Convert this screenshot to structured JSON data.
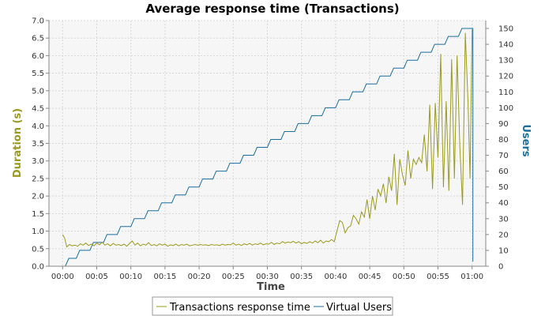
{
  "chart_data": {
    "type": "line",
    "title": "Average response time (Transactions)",
    "xlabel": "Time",
    "ylabel_left": "Duration (s)",
    "ylabel_right": "Users",
    "x_ticks": [
      "00:00",
      "00:05",
      "00:10",
      "00:15",
      "00:20",
      "00:25",
      "00:30",
      "00:35",
      "00:40",
      "00:45",
      "00:50",
      "00:55",
      "01:00"
    ],
    "xlim_minutes": [
      -2,
      62
    ],
    "ylim_left": [
      0,
      7.0
    ],
    "y_ticks_left": [
      "0.0",
      "0.5",
      "1.0",
      "1.5",
      "2.0",
      "2.5",
      "3.0",
      "3.5",
      "4.0",
      "4.5",
      "5.0",
      "5.5",
      "6.0",
      "6.5",
      "7.0"
    ],
    "ylim_right": [
      0,
      155
    ],
    "y_ticks_right": [
      "0",
      "10",
      "20",
      "30",
      "40",
      "50",
      "60",
      "70",
      "80",
      "90",
      "100",
      "110",
      "120",
      "130",
      "140",
      "150"
    ],
    "grid": true,
    "legend_position": "bottom",
    "series": [
      {
        "name": "Transactions response time",
        "color": "#9a9a1e",
        "axis": "left",
        "points": [
          [
            0,
            0.9
          ],
          [
            0.3,
            0.8
          ],
          [
            0.6,
            0.55
          ],
          [
            1,
            0.62
          ],
          [
            1.4,
            0.58
          ],
          [
            1.8,
            0.6
          ],
          [
            2.2,
            0.57
          ],
          [
            2.6,
            0.64
          ],
          [
            3,
            0.6
          ],
          [
            3.4,
            0.66
          ],
          [
            3.8,
            0.59
          ],
          [
            4.2,
            0.63
          ],
          [
            4.6,
            0.58
          ],
          [
            5,
            0.66
          ],
          [
            5.4,
            0.61
          ],
          [
            5.8,
            0.68
          ],
          [
            6.2,
            0.6
          ],
          [
            6.6,
            0.64
          ],
          [
            7,
            0.58
          ],
          [
            7.4,
            0.65
          ],
          [
            7.8,
            0.6
          ],
          [
            8.2,
            0.62
          ],
          [
            8.6,
            0.59
          ],
          [
            9,
            0.63
          ],
          [
            9.4,
            0.57
          ],
          [
            9.8,
            0.65
          ],
          [
            10.2,
            0.72
          ],
          [
            10.6,
            0.6
          ],
          [
            11,
            0.66
          ],
          [
            11.4,
            0.58
          ],
          [
            11.8,
            0.63
          ],
          [
            12.2,
            0.6
          ],
          [
            12.6,
            0.67
          ],
          [
            13,
            0.59
          ],
          [
            13.4,
            0.62
          ],
          [
            13.8,
            0.58
          ],
          [
            14.2,
            0.64
          ],
          [
            14.6,
            0.6
          ],
          [
            15,
            0.63
          ],
          [
            15.4,
            0.57
          ],
          [
            15.8,
            0.61
          ],
          [
            16.2,
            0.59
          ],
          [
            16.6,
            0.63
          ],
          [
            17,
            0.58
          ],
          [
            17.4,
            0.62
          ],
          [
            17.8,
            0.6
          ],
          [
            18.2,
            0.63
          ],
          [
            18.6,
            0.58
          ],
          [
            19,
            0.6
          ],
          [
            19.4,
            0.62
          ],
          [
            19.8,
            0.6
          ],
          [
            20.2,
            0.62
          ],
          [
            20.6,
            0.6
          ],
          [
            21,
            0.61
          ],
          [
            21.4,
            0.59
          ],
          [
            21.8,
            0.62
          ],
          [
            22.2,
            0.6
          ],
          [
            22.6,
            0.61
          ],
          [
            23,
            0.59
          ],
          [
            23.4,
            0.63
          ],
          [
            23.8,
            0.6
          ],
          [
            24.2,
            0.62
          ],
          [
            24.6,
            0.61
          ],
          [
            25,
            0.66
          ],
          [
            25.4,
            0.6
          ],
          [
            25.8,
            0.63
          ],
          [
            26.2,
            0.59
          ],
          [
            26.6,
            0.64
          ],
          [
            27,
            0.61
          ],
          [
            27.4,
            0.65
          ],
          [
            27.8,
            0.6
          ],
          [
            28.2,
            0.64
          ],
          [
            28.6,
            0.62
          ],
          [
            29,
            0.66
          ],
          [
            29.4,
            0.61
          ],
          [
            29.8,
            0.64
          ],
          [
            30.2,
            0.63
          ],
          [
            30.6,
            0.68
          ],
          [
            31,
            0.62
          ],
          [
            31.4,
            0.66
          ],
          [
            31.8,
            0.64
          ],
          [
            32.2,
            0.7
          ],
          [
            32.6,
            0.66
          ],
          [
            33,
            0.69
          ],
          [
            33.4,
            0.67
          ],
          [
            33.8,
            0.71
          ],
          [
            34.2,
            0.66
          ],
          [
            34.6,
            0.7
          ],
          [
            35,
            0.64
          ],
          [
            35.4,
            0.68
          ],
          [
            35.8,
            0.65
          ],
          [
            36.2,
            0.7
          ],
          [
            36.6,
            0.66
          ],
          [
            37,
            0.72
          ],
          [
            37.4,
            0.67
          ],
          [
            37.8,
            0.74
          ],
          [
            38.2,
            0.66
          ],
          [
            38.6,
            0.72
          ],
          [
            39,
            0.7
          ],
          [
            39.4,
            0.76
          ],
          [
            39.8,
            0.7
          ],
          [
            40.2,
            1.0
          ],
          [
            40.6,
            1.3
          ],
          [
            41,
            1.25
          ],
          [
            41.4,
            0.95
          ],
          [
            41.8,
            1.1
          ],
          [
            42.2,
            1.15
          ],
          [
            42.6,
            1.45
          ],
          [
            43,
            1.35
          ],
          [
            43.4,
            1.2
          ],
          [
            43.8,
            1.55
          ],
          [
            44.2,
            1.4
          ],
          [
            44.6,
            1.9
          ],
          [
            45,
            1.35
          ],
          [
            45.4,
            2.0
          ],
          [
            45.8,
            1.6
          ],
          [
            46.2,
            2.2
          ],
          [
            46.6,
            2.0
          ],
          [
            47,
            2.35
          ],
          [
            47.4,
            1.8
          ],
          [
            47.8,
            2.55
          ],
          [
            48.2,
            2.15
          ],
          [
            48.6,
            3.2
          ],
          [
            49,
            1.75
          ],
          [
            49.4,
            3.05
          ],
          [
            49.8,
            2.6
          ],
          [
            50.2,
            2.3
          ],
          [
            50.6,
            3.3
          ],
          [
            51,
            2.5
          ],
          [
            51.4,
            3.05
          ],
          [
            51.8,
            2.9
          ],
          [
            52.2,
            3.1
          ],
          [
            52.6,
            2.95
          ],
          [
            53,
            3.75
          ],
          [
            53.4,
            2.7
          ],
          [
            53.8,
            4.6
          ],
          [
            54.2,
            2.2
          ],
          [
            54.6,
            4.65
          ],
          [
            55,
            3.1
          ],
          [
            55.4,
            6.05
          ],
          [
            55.8,
            2.25
          ],
          [
            56.2,
            4.7
          ],
          [
            56.6,
            2.15
          ],
          [
            57,
            5.9
          ],
          [
            57.4,
            2.5
          ],
          [
            57.8,
            6.0
          ],
          [
            58.2,
            3.4
          ],
          [
            58.6,
            1.75
          ],
          [
            59,
            6.65
          ],
          [
            59.4,
            4.7
          ],
          [
            59.7,
            2.5
          ],
          [
            60,
            6.75
          ]
        ]
      },
      {
        "name": "Virtual Users",
        "color": "#1a6e9e",
        "axis": "right",
        "steps": 30,
        "step_minutes": 2,
        "step_size": 5,
        "final_users": 150,
        "end_drop_points": [
          [
            60,
            150
          ],
          [
            60,
            3
          ]
        ]
      }
    ]
  }
}
